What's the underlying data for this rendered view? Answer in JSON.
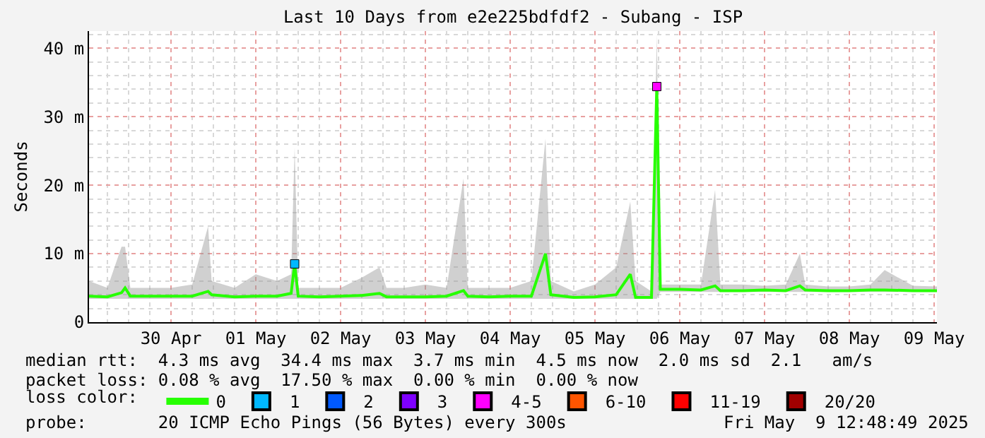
{
  "chart_data": {
    "type": "line",
    "title": "Last 10 Days from e2e225bdfdf2 - Subang - ISP",
    "ylabel": "Seconds",
    "legend_title": "loss color:",
    "x": [
      "2025-04-29T12:48",
      "2025-04-29T18:00",
      "2025-04-29T22:00",
      "2025-04-29T23:00",
      "2025-04-30T00:30",
      "2025-04-30T06:00",
      "2025-04-30T12:00",
      "2025-04-30T18:00",
      "2025-04-30T22:30",
      "2025-04-30T23:30",
      "2025-05-01T06:00",
      "2025-05-01T12:00",
      "2025-05-01T18:00",
      "2025-05-01T22:00",
      "2025-05-01T23:00",
      "2025-05-02T00:00",
      "2025-05-02T06:00",
      "2025-05-02T12:00",
      "2025-05-02T18:00",
      "2025-05-02T23:00",
      "2025-05-03T01:00",
      "2025-05-03T06:00",
      "2025-05-03T12:00",
      "2025-05-03T18:00",
      "2025-05-03T22:48",
      "2025-05-04T00:00",
      "2025-05-04T06:00",
      "2025-05-04T12:00",
      "2025-05-04T18:00",
      "2025-05-04T22:00",
      "2025-05-04T23:30",
      "2025-05-05T06:00",
      "2025-05-05T12:00",
      "2025-05-05T18:00",
      "2025-05-05T22:00",
      "2025-05-05T23:30",
      "2025-05-06T04:00",
      "2025-05-06T05:30",
      "2025-05-06T06:30",
      "2025-05-06T12:00",
      "2025-05-06T18:00",
      "2025-05-06T22:00",
      "2025-05-06T23:30",
      "2025-05-07T06:00",
      "2025-05-07T12:00",
      "2025-05-07T18:00",
      "2025-05-07T22:00",
      "2025-05-07T23:30",
      "2025-05-08T06:00",
      "2025-05-08T12:00",
      "2025-05-08T18:00",
      "2025-05-08T22:00",
      "2025-05-09T06:00",
      "2025-05-09T12:48"
    ],
    "series": [
      {
        "name": "0",
        "color": "#26ff00",
        "values": [
          3.8,
          3.7,
          4.3,
          5.0,
          3.8,
          3.8,
          3.8,
          3.8,
          4.5,
          4.0,
          3.7,
          3.8,
          3.8,
          4.2,
          8.5,
          3.8,
          3.7,
          3.8,
          3.9,
          4.2,
          3.7,
          3.7,
          3.7,
          3.8,
          4.6,
          3.8,
          3.7,
          3.8,
          3.8,
          10.0,
          4.0,
          3.6,
          3.7,
          4.0,
          7.0,
          3.6,
          3.6,
          34.4,
          4.8,
          4.8,
          4.7,
          5.3,
          4.6,
          4.6,
          4.7,
          4.6,
          5.3,
          4.7,
          4.6,
          4.6,
          4.7,
          4.7,
          4.6,
          4.6
        ],
        "lower": [
          3.4,
          3.4,
          3.4,
          3.4,
          3.4,
          3.4,
          3.4,
          3.4,
          3.4,
          3.4,
          3.4,
          3.4,
          3.4,
          3.4,
          3.4,
          3.4,
          3.4,
          3.4,
          3.4,
          3.4,
          3.4,
          3.4,
          3.4,
          3.4,
          3.4,
          3.4,
          3.4,
          3.4,
          3.4,
          3.4,
          3.4,
          3.4,
          3.4,
          3.4,
          3.4,
          3.4,
          3.4,
          3.4,
          4.4,
          4.4,
          4.4,
          4.4,
          4.4,
          4.4,
          4.4,
          4.4,
          4.4,
          4.4,
          4.4,
          4.4,
          4.4,
          4.4,
          4.4,
          4.4
        ],
        "upper": [
          6.0,
          5.0,
          11.0,
          11.0,
          5.0,
          5.0,
          5.0,
          5.5,
          14.0,
          6.0,
          5.0,
          7.0,
          6.0,
          7.0,
          25.5,
          5.0,
          5.0,
          5.0,
          6.5,
          8.0,
          5.0,
          5.0,
          5.5,
          5.0,
          21.0,
          5.0,
          5.0,
          5.0,
          6.0,
          26.8,
          6.0,
          4.5,
          5.5,
          8.0,
          17.6,
          6.0,
          4.5,
          42.0,
          5.5,
          5.5,
          5.5,
          19.3,
          5.5,
          5.5,
          5.3,
          5.5,
          10.0,
          5.5,
          5.2,
          5.2,
          5.5,
          7.6,
          5.3,
          5.2
        ]
      },
      {
        "name": "1",
        "color": "#00b8ff",
        "type": "scatter",
        "marker": "square",
        "x": [
          "2025-05-01T23:00"
        ],
        "values": [
          8.5
        ]
      },
      {
        "name": "2",
        "color": "#0059ff",
        "type": "scatter",
        "marker": "square",
        "values": [
          null,
          null,
          null,
          null,
          null,
          null,
          null,
          null,
          null,
          null,
          null,
          null,
          null,
          null,
          null,
          null,
          null,
          null,
          null,
          null,
          null,
          null,
          null,
          null,
          null,
          null,
          null,
          null,
          null,
          null,
          null,
          null,
          null,
          null,
          null,
          null,
          null,
          null,
          null,
          null,
          null,
          null,
          null,
          null,
          null,
          null,
          null,
          null,
          null,
          null,
          null,
          null,
          null,
          null
        ]
      },
      {
        "name": "3",
        "color": "#7e00ff",
        "type": "scatter",
        "marker": "square",
        "values": [
          null,
          null,
          null,
          null,
          null,
          null,
          null,
          null,
          null,
          null,
          null,
          null,
          null,
          null,
          null,
          null,
          null,
          null,
          null,
          null,
          null,
          null,
          null,
          null,
          null,
          null,
          null,
          null,
          null,
          null,
          null,
          null,
          null,
          null,
          null,
          null,
          null,
          null,
          null,
          null,
          null,
          null,
          null,
          null,
          null,
          null,
          null,
          null,
          null,
          null,
          null,
          null,
          null,
          null
        ]
      },
      {
        "name": "4-5",
        "color": "#ff00ff",
        "type": "scatter",
        "marker": "square",
        "x": [
          "2025-05-06T05:30"
        ],
        "values": [
          34.4
        ]
      },
      {
        "name": "6-10",
        "color": "#ff5500",
        "type": "scatter",
        "marker": "square",
        "values": [
          null,
          null,
          null,
          null,
          null,
          null,
          null,
          null,
          null,
          null,
          null,
          null,
          null,
          null,
          null,
          null,
          null,
          null,
          null,
          null,
          null,
          null,
          null,
          null,
          null,
          null,
          null,
          null,
          null,
          null,
          null,
          null,
          null,
          null,
          null,
          null,
          null,
          null,
          null,
          null,
          null,
          null,
          null,
          null,
          null,
          null,
          null,
          null,
          null,
          null,
          null,
          null,
          null,
          null
        ]
      },
      {
        "name": "11-19",
        "color": "#ff0000",
        "type": "scatter",
        "marker": "square",
        "values": [
          null,
          null,
          null,
          null,
          null,
          null,
          null,
          null,
          null,
          null,
          null,
          null,
          null,
          null,
          null,
          null,
          null,
          null,
          null,
          null,
          null,
          null,
          null,
          null,
          null,
          null,
          null,
          null,
          null,
          null,
          null,
          null,
          null,
          null,
          null,
          null,
          null,
          null,
          null,
          null,
          null,
          null,
          null,
          null,
          null,
          null,
          null,
          null,
          null,
          null,
          null,
          null,
          null,
          null
        ]
      },
      {
        "name": "20/20",
        "color": "#a10000",
        "type": "scatter",
        "marker": "square",
        "values": [
          null,
          null,
          null,
          null,
          null,
          null,
          null,
          null,
          null,
          null,
          null,
          null,
          null,
          null,
          null,
          null,
          null,
          null,
          null,
          null,
          null,
          null,
          null,
          null,
          null,
          null,
          null,
          null,
          null,
          null,
          null,
          null,
          null,
          null,
          null,
          null,
          null,
          null,
          null,
          null,
          null,
          null,
          null,
          null,
          null,
          null,
          null,
          null,
          null,
          null,
          null,
          null,
          null,
          null
        ]
      }
    ],
    "xlim": [
      "2025-04-29T12:48",
      "2025-05-09T12:48"
    ],
    "xticks": [
      {
        "value": "2025-04-30T12:00",
        "label": "30 Apr"
      },
      {
        "value": "2025-05-01T12:00",
        "label": "01 May"
      },
      {
        "value": "2025-05-02T12:00",
        "label": "02 May"
      },
      {
        "value": "2025-05-03T12:00",
        "label": "03 May"
      },
      {
        "value": "2025-05-04T12:00",
        "label": "04 May"
      },
      {
        "value": "2025-05-05T12:00",
        "label": "05 May"
      },
      {
        "value": "2025-05-06T12:00",
        "label": "06 May"
      },
      {
        "value": "2025-05-07T12:00",
        "label": "07 May"
      },
      {
        "value": "2025-05-08T12:00",
        "label": "08 May"
      },
      {
        "value": "2025-05-09T12:00",
        "label": "09 May"
      }
    ],
    "ylim": [
      0,
      42.5
    ],
    "yticks": [
      0,
      {
        "value": 10,
        "label": "10 m"
      },
      {
        "value": 20,
        "label": "20 m"
      },
      {
        "value": 30,
        "label": "30 m"
      },
      {
        "value": 40,
        "label": "40 m"
      }
    ],
    "grid": true,
    "legend": "bottom",
    "annotations": [
      "median rtt:  4.3 ms avg  34.4 ms max  3.7 ms min  4.5 ms now  2.0 ms sd  2.1   am/s",
      "packet loss: 0.08 % avg  17.50 % max  0.00 % min  0.00 % now",
      "probe:       20 ICMP Echo Pings (56 Bytes) every 300s",
      "Fri May  9 12:48:49 2025"
    ]
  }
}
